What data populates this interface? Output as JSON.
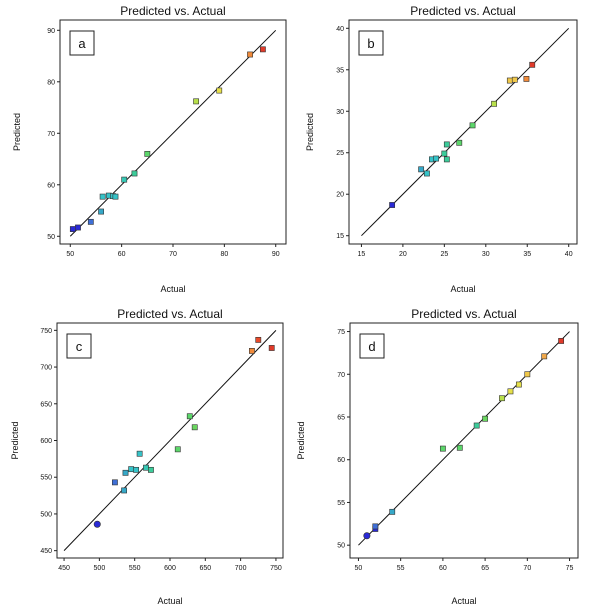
{
  "chart_data": [
    {
      "type": "scatter",
      "panel_label": "a",
      "title": "Predicted vs. Actual",
      "xlabel": "Actual",
      "ylabel": "Predicted",
      "xlim": [
        48,
        92
      ],
      "ylim": [
        48.5,
        92
      ],
      "xticks": [
        50,
        60,
        70,
        80,
        90
      ],
      "yticks": [
        50,
        60,
        70,
        80,
        90
      ],
      "grid": false,
      "points": [
        {
          "x": 50.5,
          "y": 51.4,
          "color": "#2a2ad6"
        },
        {
          "x": 51.5,
          "y": 51.7,
          "color": "#2a2ad6"
        },
        {
          "x": 54.0,
          "y": 52.8,
          "color": "#3f6fd6"
        },
        {
          "x": 56.0,
          "y": 54.8,
          "color": "#36a8c8"
        },
        {
          "x": 56.3,
          "y": 57.7,
          "color": "#36c3c8"
        },
        {
          "x": 57.5,
          "y": 57.9,
          "color": "#36c3c8"
        },
        {
          "x": 58.3,
          "y": 57.8,
          "color": "#36c3c8"
        },
        {
          "x": 58.8,
          "y": 57.7,
          "color": "#36c3c8"
        },
        {
          "x": 60.5,
          "y": 61.0,
          "color": "#36c8b5"
        },
        {
          "x": 62.5,
          "y": 62.2,
          "color": "#3ccc9a"
        },
        {
          "x": 65.0,
          "y": 66.0,
          "color": "#5cd66a"
        },
        {
          "x": 74.5,
          "y": 76.2,
          "color": "#b8e04a"
        },
        {
          "x": 79.0,
          "y": 78.3,
          "color": "#e6e04a"
        },
        {
          "x": 85.0,
          "y": 85.3,
          "color": "#f08a3a"
        },
        {
          "x": 87.5,
          "y": 86.3,
          "color": "#e03a2a"
        }
      ]
    },
    {
      "type": "scatter",
      "panel_label": "b",
      "title": "Predicted vs. Actual",
      "xlabel": "Actual",
      "ylabel": "Predicted",
      "xlim": [
        13.5,
        41
      ],
      "ylim": [
        14,
        41
      ],
      "xticks": [
        15,
        20,
        25,
        30,
        35,
        40
      ],
      "yticks": [
        15,
        20,
        25,
        30,
        35,
        40
      ],
      "grid": false,
      "points": [
        {
          "x": 18.7,
          "y": 18.7,
          "color": "#2a2ad6"
        },
        {
          "x": 22.2,
          "y": 23.0,
          "color": "#36a8c8"
        },
        {
          "x": 22.9,
          "y": 22.5,
          "color": "#36c3c8"
        },
        {
          "x": 23.5,
          "y": 24.2,
          "color": "#36c3c8"
        },
        {
          "x": 24.0,
          "y": 24.3,
          "color": "#36c3c8"
        },
        {
          "x": 25.0,
          "y": 24.9,
          "color": "#3ccc9a"
        },
        {
          "x": 25.3,
          "y": 26.0,
          "color": "#3ccc9a"
        },
        {
          "x": 25.3,
          "y": 24.2,
          "color": "#3ccc9a"
        },
        {
          "x": 26.8,
          "y": 26.2,
          "color": "#5cd66a"
        },
        {
          "x": 28.4,
          "y": 28.3,
          "color": "#5cd66a"
        },
        {
          "x": 31.0,
          "y": 30.9,
          "color": "#b8e04a"
        },
        {
          "x": 32.9,
          "y": 33.7,
          "color": "#f0c84a"
        },
        {
          "x": 33.5,
          "y": 33.8,
          "color": "#f0c84a"
        },
        {
          "x": 34.9,
          "y": 33.9,
          "color": "#f08a3a"
        },
        {
          "x": 35.6,
          "y": 35.6,
          "color": "#e03a2a"
        }
      ]
    },
    {
      "type": "scatter",
      "panel_label": "c",
      "title": "Predicted vs. Actual",
      "xlabel": "Actual",
      "ylabel": "Predicted",
      "xlim": [
        440,
        760
      ],
      "ylim": [
        440,
        760
      ],
      "xticks": [
        450,
        500,
        550,
        600,
        650,
        700,
        750
      ],
      "yticks": [
        450,
        500,
        550,
        600,
        650,
        700,
        750
      ],
      "grid": false,
      "points": [
        {
          "x": 497,
          "y": 486,
          "color": "#2a2ad6",
          "shape": "circle"
        },
        {
          "x": 522,
          "y": 543,
          "color": "#3f6fd6"
        },
        {
          "x": 535,
          "y": 532,
          "color": "#36a8c8"
        },
        {
          "x": 537,
          "y": 556,
          "color": "#36a8c8"
        },
        {
          "x": 545,
          "y": 561,
          "color": "#36c3c8"
        },
        {
          "x": 552,
          "y": 560,
          "color": "#36c3c8"
        },
        {
          "x": 557,
          "y": 582,
          "color": "#36c3c8"
        },
        {
          "x": 566,
          "y": 563,
          "color": "#36c8b5"
        },
        {
          "x": 573,
          "y": 560,
          "color": "#3ccc9a"
        },
        {
          "x": 611,
          "y": 588,
          "color": "#5cd66a"
        },
        {
          "x": 628,
          "y": 633,
          "color": "#5cd66a"
        },
        {
          "x": 635,
          "y": 618,
          "color": "#6ad660"
        },
        {
          "x": 716,
          "y": 722,
          "color": "#f08a3a"
        },
        {
          "x": 725,
          "y": 737,
          "color": "#e84a2a"
        },
        {
          "x": 744,
          "y": 726,
          "color": "#e03a2a"
        }
      ]
    },
    {
      "type": "scatter",
      "panel_label": "d",
      "title": "Predicted vs. Actual",
      "xlabel": "Actual",
      "ylabel": "Predicted",
      "xlim": [
        49,
        76
      ],
      "ylim": [
        48.5,
        76
      ],
      "xticks": [
        50,
        55,
        60,
        65,
        70,
        75
      ],
      "yticks": [
        50,
        55,
        60,
        65,
        70,
        75
      ],
      "grid": false,
      "points": [
        {
          "x": 51.0,
          "y": 51.1,
          "color": "#2a2ad6",
          "shape": "circle"
        },
        {
          "x": 52.0,
          "y": 51.9,
          "color": "#2a2ad6"
        },
        {
          "x": 52.0,
          "y": 52.2,
          "color": "#3f6fd6"
        },
        {
          "x": 54.0,
          "y": 53.9,
          "color": "#36a8c8"
        },
        {
          "x": 60.0,
          "y": 61.3,
          "color": "#5cd66a"
        },
        {
          "x": 62.0,
          "y": 61.4,
          "color": "#5cd66a"
        },
        {
          "x": 64.0,
          "y": 64.0,
          "color": "#3ccc9a"
        },
        {
          "x": 65.0,
          "y": 64.8,
          "color": "#6ad660"
        },
        {
          "x": 67.0,
          "y": 67.2,
          "color": "#b8e04a"
        },
        {
          "x": 68.0,
          "y": 68.0,
          "color": "#e6e04a"
        },
        {
          "x": 69.0,
          "y": 68.8,
          "color": "#e6e04a"
        },
        {
          "x": 70.0,
          "y": 70.0,
          "color": "#f0c84a"
        },
        {
          "x": 72.0,
          "y": 72.1,
          "color": "#f0a84a"
        },
        {
          "x": 74.0,
          "y": 73.9,
          "color": "#e03a2a"
        }
      ]
    }
  ]
}
